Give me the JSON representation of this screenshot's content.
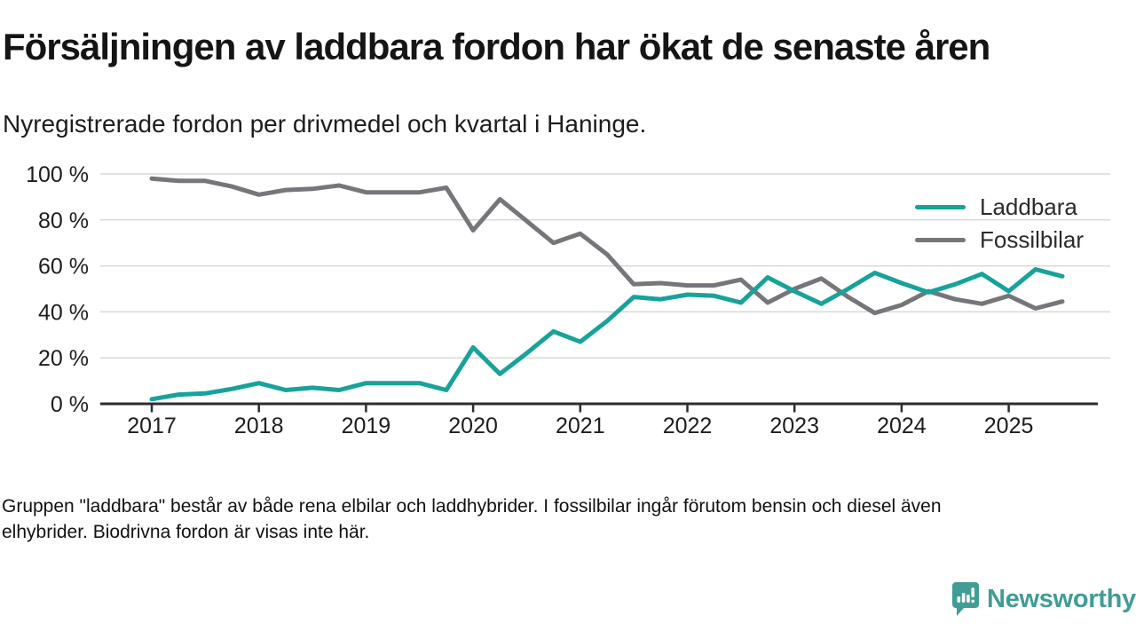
{
  "header": {
    "title": "Försäljningen av laddbara fordon har ökat de senaste åren",
    "subtitle": "Nyregistrerade fordon per drivmedel och kvartal i Haninge."
  },
  "footnote": {
    "line1": "Gruppen \"laddbara\" består av både rena elbilar och laddhybrider. I fossilbilar ingår förutom bensin och diesel även",
    "line2": "elhybrider. Biodrivna fordon är visas inte här."
  },
  "logo": {
    "text": "Newsworthy",
    "icon": "newsworthy-speech-bubble-bar-chart-icon",
    "color": "#3f9d96"
  },
  "colors": {
    "laddbara": "#17a29a",
    "fossilbilar": "#76757a",
    "grid": "#d8d8d8",
    "axis": "#2d2d2d"
  },
  "chart_data": {
    "type": "line",
    "title": "Försäljningen av laddbara fordon har ökat de senaste åren",
    "subtitle": "Nyregistrerade fordon per drivmedel och kvartal i Haninge.",
    "xlabel": "",
    "ylabel": "",
    "ylim": [
      0,
      100
    ],
    "grid": "horizontal",
    "legend_position": "top-right",
    "x_unit": "quarter",
    "categories": [
      "2017 Q1",
      "2017 Q2",
      "2017 Q3",
      "2017 Q4",
      "2018 Q1",
      "2018 Q2",
      "2018 Q3",
      "2018 Q4",
      "2019 Q1",
      "2019 Q2",
      "2019 Q3",
      "2019 Q4",
      "2020 Q1",
      "2020 Q2",
      "2020 Q3",
      "2020 Q4",
      "2021 Q1",
      "2021 Q2",
      "2021 Q3",
      "2021 Q4",
      "2022 Q1",
      "2022 Q2",
      "2022 Q3",
      "2022 Q4",
      "2023 Q1",
      "2023 Q2",
      "2023 Q3",
      "2023 Q4",
      "2024 Q1",
      "2024 Q2",
      "2024 Q3",
      "2024 Q4",
      "2025 Q1",
      "2025 Q2",
      "2025 Q3"
    ],
    "series": [
      {
        "name": "Laddbara",
        "color": "#17a29a",
        "unit": "%",
        "values": [
          2,
          4,
          4.5,
          6.5,
          9,
          6,
          7,
          6,
          9,
          9,
          9,
          6,
          24.5,
          13,
          22,
          31.5,
          27,
          36,
          46.5,
          45.5,
          47.5,
          47,
          44,
          55,
          49,
          43.5,
          50,
          57,
          52.5,
          48.5,
          52,
          56.5,
          49,
          58.5,
          55.5
        ]
      },
      {
        "name": "Fossilbilar",
        "color": "#76757a",
        "unit": "%",
        "values": [
          98,
          97,
          97,
          94.5,
          91,
          93,
          93.5,
          95,
          92,
          92,
          92,
          94,
          75.5,
          89,
          79.5,
          70,
          74,
          65,
          52,
          52.5,
          51.5,
          51.5,
          54,
          44,
          50,
          54.5,
          46.5,
          39.5,
          43,
          49,
          45.5,
          43.5,
          47,
          41.5,
          44.5
        ]
      }
    ],
    "yticks": [
      {
        "value": 0,
        "label": "0 %"
      },
      {
        "value": 20,
        "label": "20 %"
      },
      {
        "value": 40,
        "label": "40 %"
      },
      {
        "value": 60,
        "label": "60 %"
      },
      {
        "value": 80,
        "label": "80 %"
      },
      {
        "value": 100,
        "label": "100 %"
      }
    ],
    "xticks": [
      "2017",
      "2018",
      "2019",
      "2020",
      "2021",
      "2022",
      "2023",
      "2024",
      "2025"
    ]
  }
}
